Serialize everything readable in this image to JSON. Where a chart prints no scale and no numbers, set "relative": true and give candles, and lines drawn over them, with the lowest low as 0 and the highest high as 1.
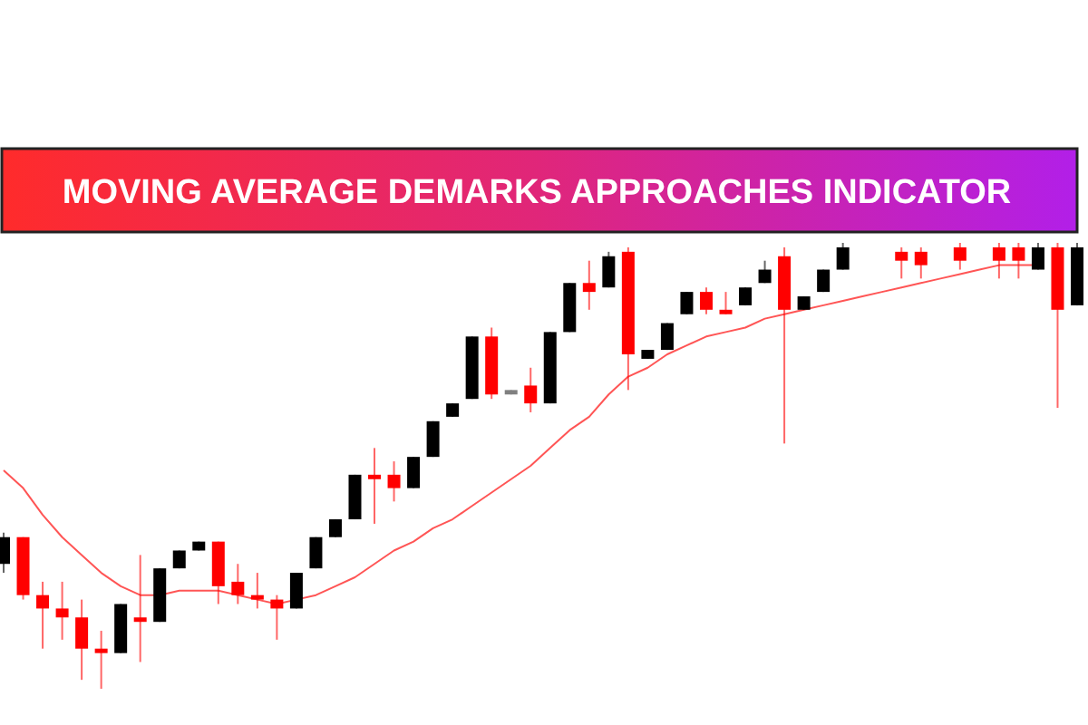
{
  "chart_data": {
    "type": "candlestick",
    "title": "MOVING AVERAGE DEMARKS APPROACHES INDICATOR",
    "relative": true,
    "categories": [
      null,
      null,
      null,
      null,
      null,
      null,
      null,
      null,
      null,
      null,
      null,
      null,
      null,
      null,
      null,
      null,
      null,
      null,
      null,
      null,
      null,
      null,
      null,
      null,
      null,
      null,
      null,
      null,
      null,
      null,
      null,
      null,
      null,
      null,
      null,
      null,
      null,
      null,
      null,
      null,
      null,
      null,
      null,
      null,
      null,
      null,
      null,
      null,
      null,
      null,
      null,
      null,
      null,
      null,
      null,
      null
    ],
    "series": [
      {
        "type": "line",
        "color": "#ff5555",
        "values": [
          0.49,
          0.45,
          0.39,
          0.34,
          0.3,
          0.26,
          0.23,
          0.21,
          0.21,
          0.22,
          0.22,
          0.22,
          0.21,
          0.2,
          0.19,
          0.2,
          0.21,
          0.23,
          0.25,
          0.28,
          0.31,
          0.33,
          0.36,
          0.38,
          0.41,
          0.44,
          0.47,
          0.5,
          0.54,
          0.58,
          0.61,
          0.66,
          0.7,
          0.72,
          0.75,
          0.77,
          0.79,
          0.8,
          0.81,
          0.83,
          0.84,
          0.85,
          0.86,
          0.87,
          0.88,
          0.89,
          0.9,
          0.91,
          0.92,
          0.93,
          0.94,
          0.95,
          0.95,
          0.95,
          null,
          null
        ]
      },
      {
        "colors": [
          "#000000",
          "#ff0000",
          "#ff0000",
          "#ff0000",
          "#ff0000",
          "#ff0000",
          "#000000",
          "#ff0000",
          "#000000",
          "#000000",
          "#000000",
          "#ff0000",
          "#ff0000",
          "#ff0000",
          "#ff0000",
          "#000000",
          "#000000",
          "#000000",
          "#000000",
          "#ff0000",
          "#ff0000",
          "#000000",
          "#000000",
          "#000000",
          "#000000",
          "#ff0000",
          "#808080",
          "#ff0000",
          "#000000",
          "#000000",
          "#ff0000",
          "#000000",
          "#ff0000",
          "#000000",
          "#000000",
          "#000000",
          "#ff0000",
          "#ff0000",
          "#000000",
          "#000000",
          "#ff0000",
          "#000000",
          "#000000",
          "#000000",
          null,
          null,
          "#ff0000",
          "#ff0000",
          null,
          "#ff0000",
          null,
          "#ff0000",
          "#ff0000",
          "#000000",
          "#ff0000",
          "#000000"
        ],
        "ohlc": [
          [
            0.28,
            0.35,
            0.26,
            0.34
          ],
          [
            0.34,
            0.34,
            0.2,
            0.21
          ],
          [
            0.21,
            0.24,
            0.09,
            0.18
          ],
          [
            0.18,
            0.24,
            0.11,
            0.16
          ],
          [
            0.16,
            0.2,
            0.02,
            0.09
          ],
          [
            0.09,
            0.13,
            0,
            0.08
          ],
          [
            0.08,
            0.19,
            0.08,
            0.19
          ],
          [
            0.16,
            0.3,
            0.06,
            0.15
          ],
          [
            0.15,
            0.27,
            0.15,
            0.27
          ],
          [
            0.27,
            0.31,
            0.27,
            0.31
          ],
          [
            0.31,
            0.33,
            0.31,
            0.33
          ],
          [
            0.33,
            0.33,
            0.19,
            0.23
          ],
          [
            0.24,
            0.28,
            0.19,
            0.21
          ],
          [
            0.21,
            0.26,
            0.18,
            0.2
          ],
          [
            0.2,
            0.21,
            0.11,
            0.18
          ],
          [
            0.18,
            0.26,
            0.18,
            0.26
          ],
          [
            0.27,
            0.34,
            0.27,
            0.34
          ],
          [
            0.34,
            0.38,
            0.34,
            0.38
          ],
          [
            0.38,
            0.48,
            0.38,
            0.48
          ],
          [
            0.48,
            0.54,
            0.37,
            0.47
          ],
          [
            0.48,
            0.51,
            0.42,
            0.45
          ],
          [
            0.45,
            0.52,
            0.45,
            0.52
          ],
          [
            0.52,
            0.6,
            0.52,
            0.6
          ],
          [
            0.61,
            0.64,
            0.61,
            0.64
          ],
          [
            0.65,
            0.79,
            0.65,
            0.79
          ],
          [
            0.79,
            0.81,
            0.65,
            0.66
          ],
          [
            0.67,
            0.67,
            0.66,
            0.66
          ],
          [
            0.68,
            0.72,
            0.62,
            0.64
          ],
          [
            0.64,
            0.8,
            0.64,
            0.8
          ],
          [
            0.8,
            0.91,
            0.8,
            0.91
          ],
          [
            0.91,
            0.96,
            0.85,
            0.89
          ],
          [
            0.9,
            0.98,
            0.9,
            0.97
          ],
          [
            0.98,
            0.99,
            0.67,
            0.75
          ],
          [
            0.74,
            0.76,
            0.74,
            0.76
          ],
          [
            0.76,
            0.82,
            0.76,
            0.82
          ],
          [
            0.84,
            0.89,
            0.84,
            0.89
          ],
          [
            0.89,
            0.9,
            0.84,
            0.85
          ],
          [
            0.85,
            0.89,
            0.84,
            0.84
          ],
          [
            0.86,
            0.9,
            0.86,
            0.9
          ],
          [
            0.91,
            0.96,
            0.91,
            0.94
          ],
          [
            0.97,
            0.99,
            0.55,
            0.85
          ],
          [
            0.85,
            0.88,
            0.85,
            0.88
          ],
          [
            0.89,
            0.94,
            0.89,
            0.94
          ],
          [
            0.94,
            1,
            0.94,
            0.99
          ],
          null,
          null,
          [
            0.98,
            0.99,
            0.92,
            0.96
          ],
          [
            0.98,
            0.99,
            0.92,
            0.95
          ],
          null,
          [
            0.99,
            1,
            0.94,
            0.96
          ],
          null,
          [
            0.99,
            1,
            0.92,
            0.96
          ],
          [
            0.99,
            1,
            0.92,
            0.96
          ],
          [
            0.94,
            1,
            0.94,
            0.99
          ],
          [
            0.99,
            1,
            0.63,
            0.85
          ],
          [
            0.86,
            1,
            0.86,
            0.99
          ]
        ]
      }
    ]
  }
}
